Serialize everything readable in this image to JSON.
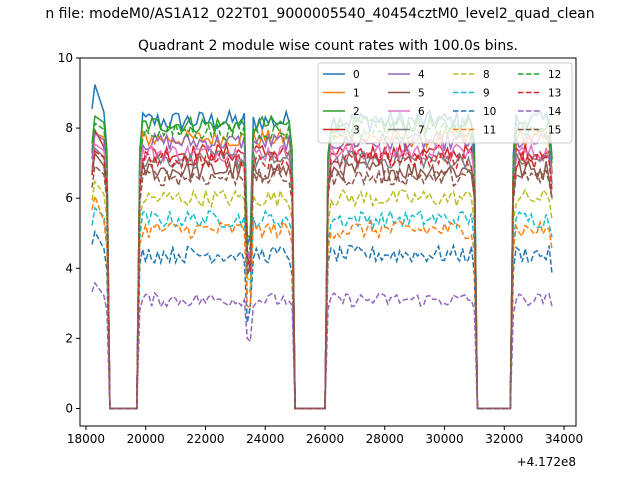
{
  "figure": {
    "suptitle": "n file: modeM0/AS1A12_022T01_9000005540_40454cztM0_level2_quad_clean",
    "offset_label": "+4.172e8"
  },
  "chart_data": {
    "type": "line",
    "title": "Quadrant 2 module wise count rates with 100.0s bins.",
    "xlabel": "",
    "ylabel": "",
    "xlim": [
      17800,
      34400
    ],
    "ylim": [
      -0.5,
      10
    ],
    "x_offset": 417200000,
    "xticks": [
      18000,
      20000,
      22000,
      24000,
      26000,
      28000,
      30000,
      32000,
      34000
    ],
    "yticks": [
      0,
      2,
      4,
      6,
      8,
      10
    ],
    "grid": false,
    "legend": {
      "placement": "top-right",
      "columns": 4
    },
    "x_segments": [
      [
        18200,
        18700
      ],
      [
        19800,
        24900
      ],
      [
        26100,
        31000
      ],
      [
        32300,
        33600
      ]
    ],
    "series": [
      {
        "name": "0",
        "color": "#1f77b4",
        "dash": "solid",
        "level": 8.2,
        "noise": 0.3,
        "start": 9.5
      },
      {
        "name": "1",
        "color": "#ff7f0e",
        "dash": "solid",
        "level": 7.7,
        "noise": 0.25,
        "start": 7.9
      },
      {
        "name": "2",
        "color": "#2ca02c",
        "dash": "solid",
        "level": 8.1,
        "noise": 0.25,
        "start": 8.4
      },
      {
        "name": "3",
        "color": "#d62728",
        "dash": "solid",
        "level": 7.3,
        "noise": 0.25,
        "start": 8.1
      },
      {
        "name": "4",
        "color": "#9467bd",
        "dash": "solid",
        "level": 7.6,
        "noise": 0.25,
        "start": 7.9
      },
      {
        "name": "5",
        "color": "#8c564b",
        "dash": "solid",
        "level": 6.8,
        "noise": 0.3,
        "start": 7.4
      },
      {
        "name": "6",
        "color": "#e377c2",
        "dash": "solid",
        "level": 7.3,
        "noise": 0.25,
        "start": 7.6
      },
      {
        "name": "7",
        "color": "#7f7f7f",
        "dash": "solid",
        "level": 7.1,
        "noise": 0.25,
        "start": 7.5
      },
      {
        "name": "8",
        "color": "#bcbd22",
        "dash": "dashed",
        "level": 6.0,
        "noise": 0.25,
        "start": 6.6
      },
      {
        "name": "9",
        "color": "#17becf",
        "dash": "dashed",
        "level": 5.4,
        "noise": 0.25,
        "start": 5.8
      },
      {
        "name": "10",
        "color": "#1f77b4",
        "dash": "dashed",
        "level": 4.4,
        "noise": 0.25,
        "start": 5.2
      },
      {
        "name": "11",
        "color": "#ff7f0e",
        "dash": "dashed",
        "level": 5.1,
        "noise": 0.25,
        "start": 6.3
      },
      {
        "name": "12",
        "color": "#2ca02c",
        "dash": "dashed",
        "level": 7.9,
        "noise": 0.25,
        "start": 8.2
      },
      {
        "name": "13",
        "color": "#d62728",
        "dash": "dashed",
        "level": 7.1,
        "noise": 0.25,
        "start": 7.4
      },
      {
        "name": "14",
        "color": "#9467bd",
        "dash": "dashed",
        "level": 3.1,
        "noise": 0.2,
        "start": 3.7
      },
      {
        "name": "15",
        "color": "#8c564b",
        "dash": "dashed",
        "level": 6.6,
        "noise": 0.25,
        "start": 7.0
      }
    ]
  }
}
